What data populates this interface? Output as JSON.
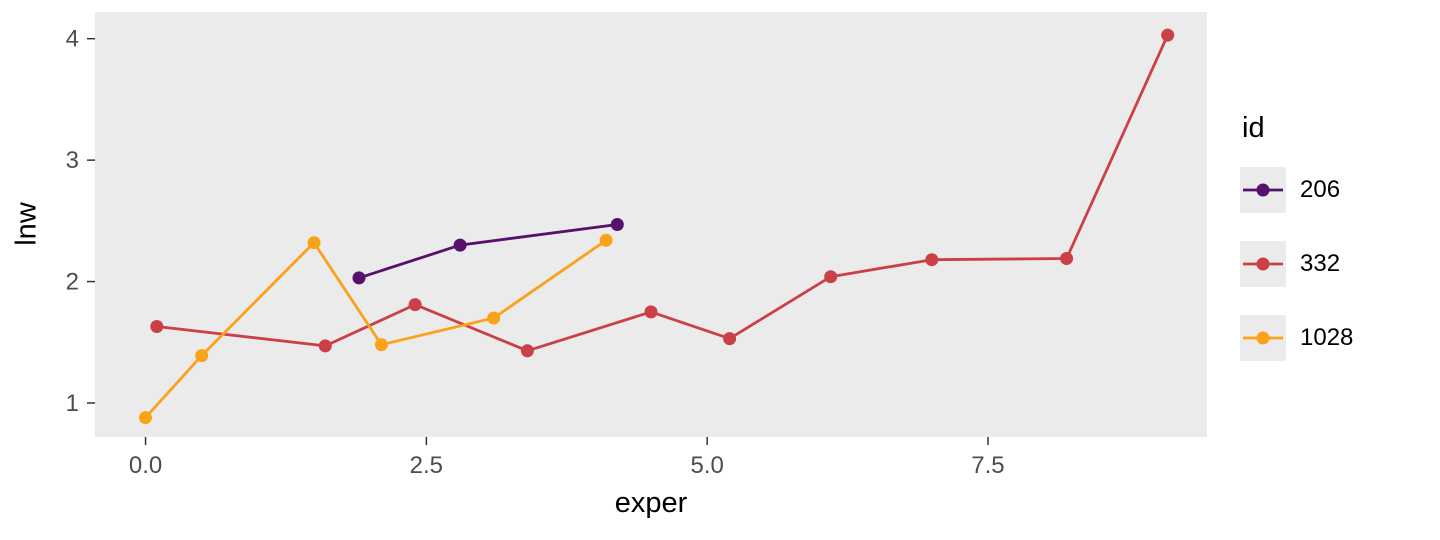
{
  "chart_data": {
    "type": "line",
    "title": "",
    "xlabel": "exper",
    "ylabel": "lnw",
    "legend_title": "id",
    "legend_position": "right",
    "grid": false,
    "xlim": [
      -0.45,
      9.45
    ],
    "ylim": [
      0.72,
      4.22
    ],
    "x_ticks": [
      0.0,
      2.5,
      5.0,
      7.5
    ],
    "x_tick_labels": [
      "0.0",
      "2.5",
      "5.0",
      "7.5"
    ],
    "y_ticks": [
      1,
      2,
      3,
      4
    ],
    "y_tick_labels": [
      "1",
      "2",
      "3",
      "4"
    ],
    "series": [
      {
        "name": "206",
        "color": "#56106E",
        "points": [
          [
            1.9,
            2.03
          ],
          [
            2.8,
            2.3
          ],
          [
            4.2,
            2.47
          ]
        ]
      },
      {
        "name": "332",
        "color": "#CB4046",
        "points": [
          [
            0.1,
            1.63
          ],
          [
            1.6,
            1.47
          ],
          [
            2.4,
            1.81
          ],
          [
            3.4,
            1.43
          ],
          [
            4.5,
            1.75
          ],
          [
            5.2,
            1.53
          ],
          [
            6.1,
            2.04
          ],
          [
            7.0,
            2.18
          ],
          [
            8.2,
            2.19
          ],
          [
            9.1,
            4.03
          ]
        ]
      },
      {
        "name": "1028",
        "color": "#FAA219",
        "points": [
          [
            0.0,
            0.88
          ],
          [
            0.5,
            1.39
          ],
          [
            1.5,
            2.32
          ],
          [
            2.1,
            1.48
          ],
          [
            3.1,
            1.7
          ],
          [
            4.1,
            2.34
          ]
        ]
      }
    ],
    "panel_bg": "#EBEBEB",
    "tick_mark_color": "#333333",
    "tick_label_color": "#4D4D4D",
    "text_color": "#000000"
  }
}
